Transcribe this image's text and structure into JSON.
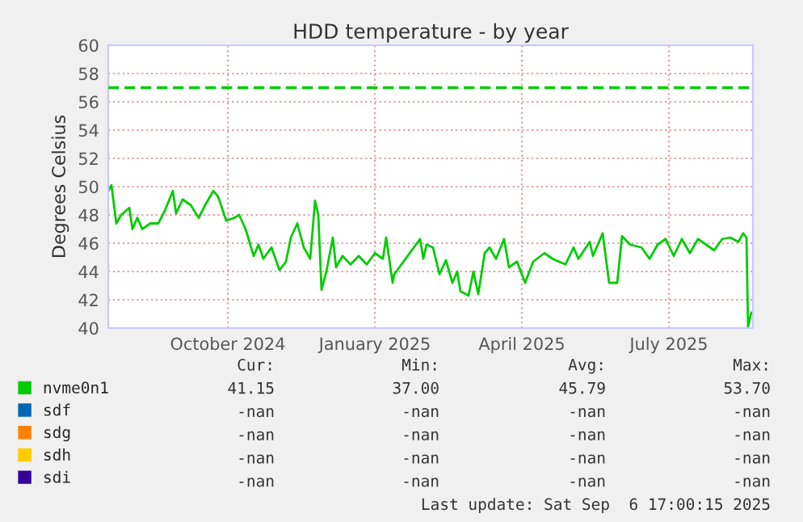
{
  "chart_data": {
    "type": "line",
    "title": "HDD temperature - by year",
    "ylabel": "Degrees Celsius",
    "xlim": [
      "2024-08-04",
      "2025-09-07"
    ],
    "ylim": [
      40,
      60
    ],
    "yticks": [
      40,
      42,
      44,
      46,
      48,
      50,
      52,
      54,
      56,
      58,
      60
    ],
    "xticks": [
      {
        "value": "2024-10-17",
        "label": "October 2024"
      },
      {
        "value": "2025-01-16",
        "label": "January 2025"
      },
      {
        "value": "2025-04-17",
        "label": "April 2025"
      },
      {
        "value": "2025-07-17",
        "label": "July 2025"
      }
    ],
    "grid": true,
    "legend": "bottom left",
    "ref_lines": [
      {
        "axis": "y",
        "value": 57,
        "color": "#00cc00",
        "line_style": "dashed"
      }
    ],
    "series": [
      {
        "name": "nvme0n1",
        "color": "#00cc00",
        "x": [
          "2024-08-04",
          "2024-08-06",
          "2024-08-09",
          "2024-08-12",
          "2024-08-17",
          "2024-08-19",
          "2024-08-22",
          "2024-08-25",
          "2024-08-30",
          "2024-09-04",
          "2024-09-08",
          "2024-09-13",
          "2024-09-15",
          "2024-09-19",
          "2024-09-24",
          "2024-09-29",
          "2024-10-03",
          "2024-10-08",
          "2024-10-11",
          "2024-10-16",
          "2024-10-21",
          "2024-10-24",
          "2024-10-28",
          "2024-11-02",
          "2024-11-05",
          "2024-11-08",
          "2024-11-13",
          "2024-11-18",
          "2024-11-22",
          "2024-11-25",
          "2024-11-29",
          "2024-12-03",
          "2024-12-07",
          "2024-12-10",
          "2024-12-12",
          "2024-12-14",
          "2024-12-17",
          "2024-12-21",
          "2024-12-23",
          "2024-12-27",
          "2025-01-01",
          "2025-01-06",
          "2025-01-11",
          "2025-01-16",
          "2025-01-21",
          "2025-01-23",
          "2025-01-26",
          "2025-01-27",
          "2025-01-28",
          "2025-02-05",
          "2025-02-13",
          "2025-02-15",
          "2025-02-17",
          "2025-02-21",
          "2025-02-23",
          "2025-02-25",
          "2025-03-01",
          "2025-03-05",
          "2025-03-08",
          "2025-03-10",
          "2025-03-15",
          "2025-03-18",
          "2025-03-21",
          "2025-03-25",
          "2025-03-28",
          "2025-04-01",
          "2025-04-06",
          "2025-04-09",
          "2025-04-14",
          "2025-04-19",
          "2025-04-24",
          "2025-05-01",
          "2025-05-06",
          "2025-05-14",
          "2025-05-19",
          "2025-05-22",
          "2025-05-29",
          "2025-05-30",
          "2025-05-31",
          "2025-06-06",
          "2025-06-10",
          "2025-06-15",
          "2025-06-18",
          "2025-06-23",
          "2025-06-30",
          "2025-07-05",
          "2025-07-10",
          "2025-07-15",
          "2025-07-20",
          "2025-07-25",
          "2025-07-30",
          "2025-08-04",
          "2025-08-09",
          "2025-08-14",
          "2025-08-19",
          "2025-08-24",
          "2025-08-29",
          "2025-09-01",
          "2025-09-03",
          "2025-09-04",
          "2025-09-06"
        ],
        "values": [
          49.7,
          50.1,
          47.4,
          48.0,
          48.5,
          47.0,
          47.8,
          47.0,
          47.4,
          47.4,
          48.3,
          49.7,
          48.1,
          49.1,
          48.7,
          47.8,
          48.7,
          49.7,
          49.3,
          47.6,
          47.8,
          48.0,
          47.0,
          45.1,
          45.9,
          44.9,
          45.7,
          44.1,
          44.7,
          46.4,
          47.4,
          45.7,
          44.9,
          49.0,
          48.0,
          42.7,
          44.0,
          46.4,
          44.3,
          45.1,
          44.5,
          45.1,
          44.5,
          45.3,
          44.9,
          46.4,
          44.0,
          43.2,
          43.8,
          null,
          46.3,
          44.9,
          45.9,
          45.7,
          null,
          43.8,
          44.8,
          43.2,
          44.0,
          42.6,
          42.3,
          44.0,
          42.4,
          45.3,
          45.7,
          44.9,
          46.3,
          44.3,
          44.7,
          43.2,
          44.7,
          45.3,
          44.9,
          44.5,
          45.7,
          44.9,
          46.1,
          null,
          45.1,
          46.7,
          43.2,
          43.2,
          46.5,
          45.9,
          45.7,
          44.9,
          45.9,
          46.3,
          45.1,
          46.3,
          45.3,
          46.3,
          45.9,
          45.5,
          46.3,
          46.4,
          46.1,
          46.7,
          46.4,
          40.1,
          41.1
        ]
      },
      {
        "name": "sdf",
        "color": "#0066b3"
      },
      {
        "name": "sdg",
        "color": "#ff8000"
      },
      {
        "name": "sdh",
        "color": "#ffcc00"
      },
      {
        "name": "sdi",
        "color": "#330099"
      }
    ],
    "annotations": [
      "Cur:",
      "Min:",
      "Avg:",
      "Max:",
      "41.15",
      "37.00",
      "45.79",
      "53.70",
      "-nan",
      "-nan",
      "-nan",
      "-nan",
      "-nan",
      "-nan",
      "-nan",
      "-nan",
      "-nan",
      "-nan",
      "-nan",
      "-nan",
      "-nan",
      "-nan",
      "-nan",
      "-nan",
      "Last update: Sat Sep  6 17:00:15 2025"
    ]
  }
}
